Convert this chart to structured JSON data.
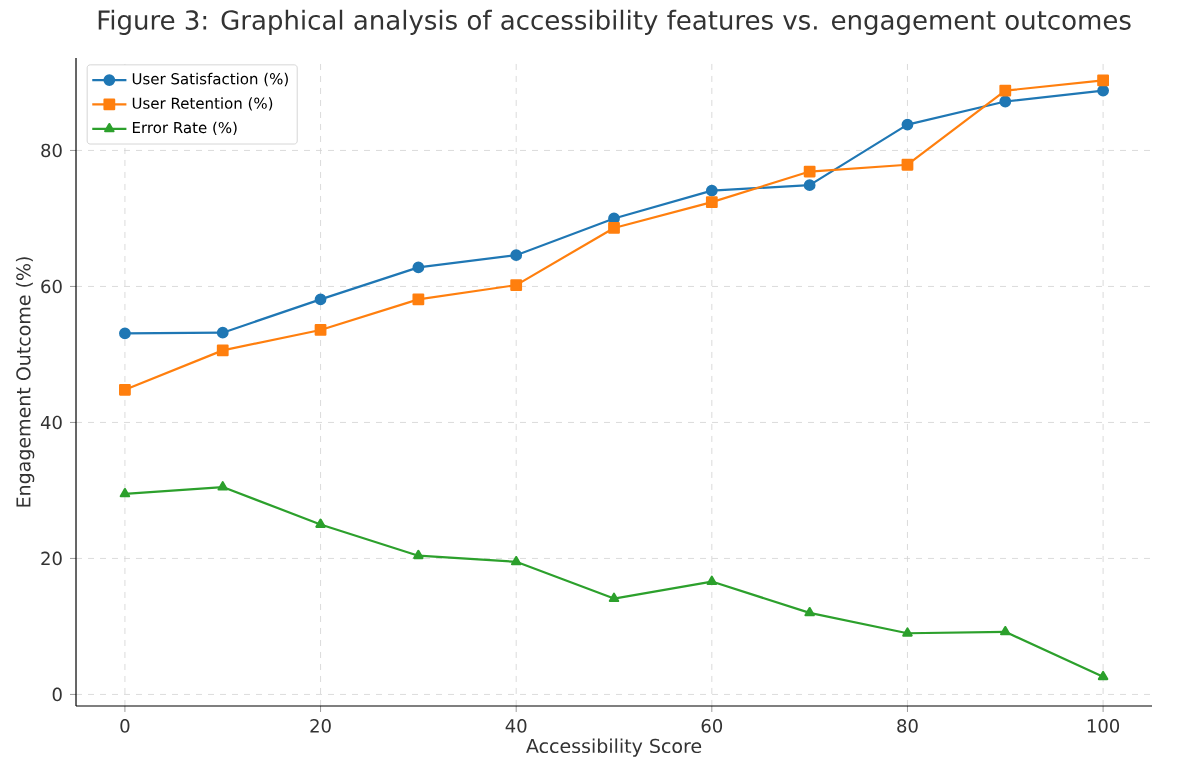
{
  "chart_data": {
    "type": "line",
    "title": "Figure 3: Graphical analysis of accessibility features vs. engagement outcomes",
    "xlabel": "Accessibility Score",
    "ylabel": "Engagement Outcome (%)",
    "x": [
      0,
      10,
      20,
      30,
      40,
      50,
      60,
      70,
      80,
      90,
      100
    ],
    "series": [
      {
        "name": "User Satisfaction (%)",
        "color": "#1f77b4",
        "marker": "circle",
        "values": [
          53.1,
          53.2,
          58.1,
          62.8,
          64.6,
          70.0,
          74.1,
          74.9,
          83.8,
          87.2,
          88.8
        ]
      },
      {
        "name": "User Retention (%)",
        "color": "#ff7f0e",
        "marker": "square",
        "values": [
          44.8,
          50.6,
          53.6,
          58.1,
          60.2,
          68.6,
          72.4,
          76.9,
          77.9,
          88.8,
          90.3
        ]
      },
      {
        "name": "Error Rate (%)",
        "color": "#2ca02c",
        "marker": "triangle",
        "values": [
          29.5,
          30.5,
          25.0,
          20.4,
          19.5,
          14.1,
          16.6,
          12.0,
          9.0,
          9.2,
          2.6
        ]
      }
    ],
    "xlim": [
      -5,
      105
    ],
    "ylim": [
      -1.7,
      93.6
    ],
    "xticks": [
      0,
      20,
      40,
      60,
      80,
      100
    ],
    "yticks": [
      0,
      20,
      40,
      60,
      80
    ],
    "grid": true,
    "legend": "top left",
    "line_style": "solid"
  }
}
